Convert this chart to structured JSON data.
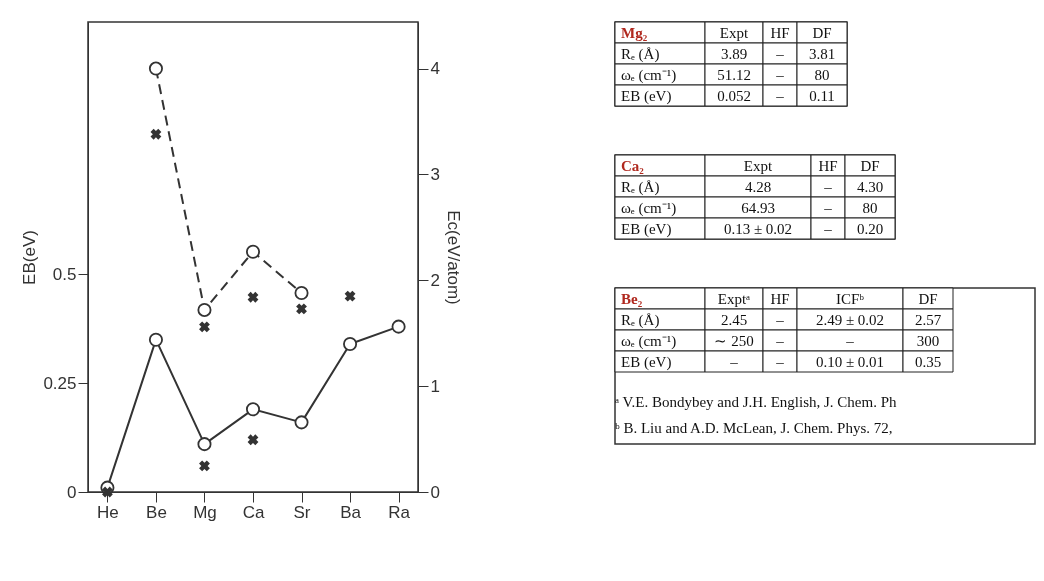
{
  "chart_data": [
    {
      "type": "line",
      "categories": [
        "He",
        "Be",
        "Mg",
        "Ca",
        "Sr",
        "Ba",
        "Ra"
      ],
      "ylim": [
        0,
        1.08
      ],
      "yticks": [
        0,
        0.25,
        0.5
      ],
      "y2lim": [
        0,
        4.44
      ],
      "y2ticks": [
        0,
        1,
        2,
        3,
        4
      ],
      "ylabel": "EB(eV)",
      "y2label": "Ec(eV/atom)",
      "grid": false,
      "series": [
        {
          "type": "line",
          "color": "#333333",
          "marker": "circle",
          "line_style": "solid",
          "values": [
            0.01,
            0.35,
            0.11,
            0.19,
            0.16,
            0.34,
            0.38
          ]
        },
        {
          "type": "scatter",
          "color": "#333333",
          "marker": "cross",
          "values": [
            0.0,
            null,
            0.06,
            0.12,
            null,
            null,
            null
          ]
        },
        {
          "type": "line",
          "axis": "y2",
          "color": "#333333",
          "marker": "circle",
          "line_style": "dashed",
          "values": [
            null,
            4.0,
            1.72,
            2.27,
            1.88,
            null,
            null
          ]
        },
        {
          "type": "scatter",
          "axis": "y2",
          "color": "#333333",
          "marker": "cross",
          "values": [
            null,
            3.38,
            1.56,
            1.84,
            1.73,
            1.85,
            null
          ]
        }
      ]
    },
    {
      "type": "other",
      "title": "Mg₂",
      "categories": [
        "Expt",
        "HF",
        "DF"
      ],
      "y_categories": [
        "Rₑ (Å)",
        "ωₑ (cm⁻¹)",
        "EB (eV)"
      ],
      "cell_labels": [
        [
          "3.89",
          "–",
          "3.81"
        ],
        [
          "51.12",
          "–",
          "80"
        ],
        [
          "0.052",
          "–",
          "0.11"
        ]
      ]
    },
    {
      "type": "other",
      "title": "Ca₂",
      "categories": [
        "Expt",
        "HF",
        "DF"
      ],
      "y_categories": [
        "Rₑ (Å)",
        "ωₑ (cm⁻¹)",
        "EB (eV)"
      ],
      "cell_labels": [
        [
          "4.28",
          "–",
          "4.30"
        ],
        [
          "64.93",
          "–",
          "80"
        ],
        [
          "0.13 ± 0.02",
          "–",
          "0.20"
        ]
      ]
    },
    {
      "type": "other",
      "title": "Be₂",
      "categories": [
        "Exptᵃ",
        "HF",
        "ICFᵇ",
        "DF"
      ],
      "y_categories": [
        "Rₑ (Å)",
        "ωₑ (cm⁻¹)",
        "EB (eV)"
      ],
      "cell_labels": [
        [
          "2.45",
          "–",
          "2.49 ± 0.02",
          "2.57"
        ],
        [
          "∼ 250",
          "–",
          "–",
          "300"
        ],
        [
          "–",
          "–",
          "0.10 ± 0.01",
          "0.35"
        ]
      ],
      "annotations": [
        "ᵃ V.E. Bondybey and J.H. English, J. Chem. Ph",
        "ᵇ B. Liu and A.D. McLean, J. Chem. Phys. 72,"
      ]
    }
  ]
}
